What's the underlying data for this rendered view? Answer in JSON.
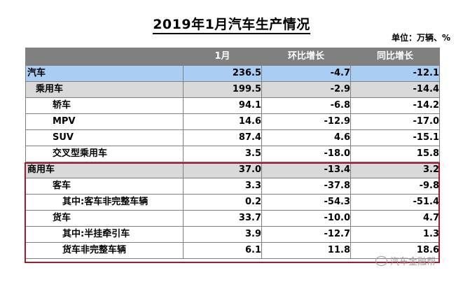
{
  "title": "2019年1月汽车生产情况",
  "unit": "单位：万辆、%",
  "columns": [
    "",
    "1月",
    "环比增长",
    "同比增长"
  ],
  "rows": [
    {
      "label": "汽车",
      "month": "236.5",
      "mom": "-4.7",
      "yoy": "-12.1"
    },
    {
      "label": "乘用车",
      "month": "199.5",
      "mom": "-2.9",
      "yoy": "-14.4"
    },
    {
      "label": "轿车",
      "month": "94.1",
      "mom": "-6.8",
      "yoy": "-14.2"
    },
    {
      "label": "MPV",
      "month": "14.6",
      "mom": "-12.9",
      "yoy": "-17.0"
    },
    {
      "label": "SUV",
      "month": "87.4",
      "mom": "4.6",
      "yoy": "-15.1"
    },
    {
      "label": "交叉型乘用车",
      "month": "3.5",
      "mom": "-18.0",
      "yoy": "15.8"
    },
    {
      "label": "商用车",
      "month": "37.0",
      "mom": "-13.4",
      "yoy": "3.2"
    },
    {
      "label": "客车",
      "month": "3.3",
      "mom": "-37.8",
      "yoy": "-9.8"
    },
    {
      "label": "其中:客车非完整车辆",
      "month": "0.2",
      "mom": "-54.3",
      "yoy": "-51.4"
    },
    {
      "label": "货车",
      "month": "33.7",
      "mom": "-10.0",
      "yoy": "4.7"
    },
    {
      "label": "其中:半挂牵引车",
      "month": "3.9",
      "mom": "-12.7",
      "yoy": "1.3"
    },
    {
      "label": "货车非完整车辆",
      "month": "6.1",
      "mom": "11.8",
      "yoy": "18.6"
    }
  ],
  "watermark": "汽车金融帮",
  "colors": {
    "header": "#808080",
    "highlight": "#a9cdf3",
    "grey_row": "#d9d9d9",
    "box": "#a01d2a"
  }
}
